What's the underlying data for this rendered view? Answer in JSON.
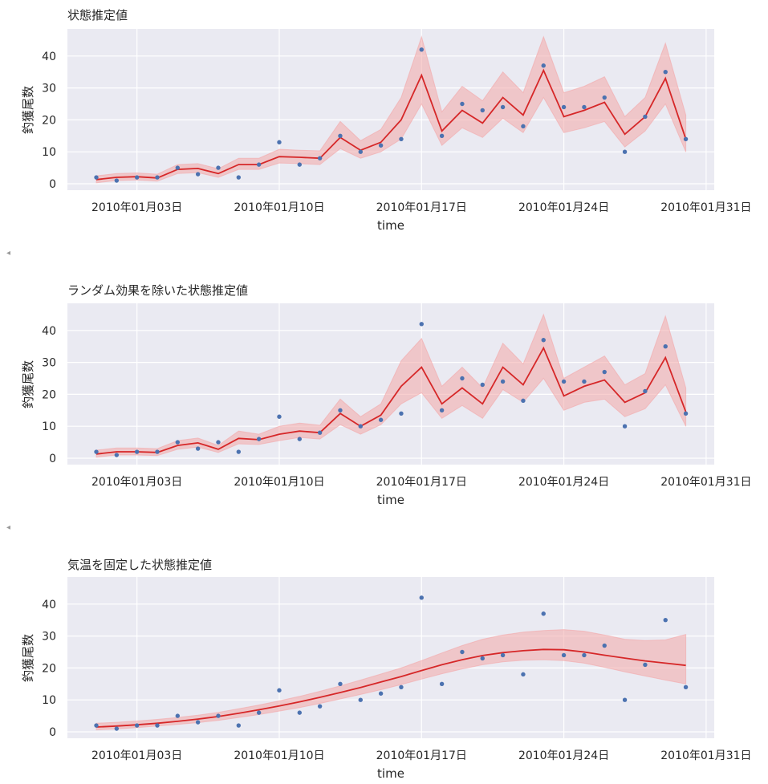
{
  "chart_data": [
    {
      "type": "line",
      "title": "状態推定値",
      "xlabel": "time",
      "ylabel": "釣獲尾数",
      "xlim": [
        "2010-01-01",
        "2010-01-31"
      ],
      "ylim": [
        0,
        45
      ],
      "xticks": [
        "2010-01-03",
        "2010-01-10",
        "2010-01-17",
        "2010-01-24",
        "2010-01-31"
      ],
      "xtick_labels": [
        "2010年01月03日",
        "2010年01月10日",
        "2010年01月17日",
        "2010年01月24日",
        "2010年01月31日"
      ],
      "yticks": [
        0,
        10,
        20,
        30,
        40
      ],
      "grid": true,
      "x": [
        "2010-01-01",
        "2010-01-02",
        "2010-01-03",
        "2010-01-04",
        "2010-01-05",
        "2010-01-06",
        "2010-01-07",
        "2010-01-08",
        "2010-01-09",
        "2010-01-10",
        "2010-01-11",
        "2010-01-12",
        "2010-01-13",
        "2010-01-14",
        "2010-01-15",
        "2010-01-16",
        "2010-01-17",
        "2010-01-18",
        "2010-01-19",
        "2010-01-20",
        "2010-01-21",
        "2010-01-22",
        "2010-01-23",
        "2010-01-24",
        "2010-01-25",
        "2010-01-26",
        "2010-01-27",
        "2010-01-28",
        "2010-01-29",
        "2010-01-30"
      ],
      "observed": [
        2,
        1,
        2,
        2,
        5,
        3,
        5,
        2,
        6,
        13,
        6,
        8,
        15,
        10,
        12,
        14,
        42,
        15,
        25,
        23,
        24,
        18,
        37,
        24,
        24,
        27,
        10,
        21,
        35,
        14
      ],
      "estimate": [
        1.3,
        2.0,
        2.2,
        1.8,
        4.5,
        4.8,
        3.2,
        6.0,
        6.0,
        8.5,
        8.3,
        8.0,
        14.5,
        10.5,
        13.0,
        20.0,
        34.0,
        16.5,
        23.0,
        19.0,
        27.0,
        21.5,
        35.5,
        21.0,
        23.0,
        25.5,
        15.5,
        21.0,
        33.0,
        14.0
      ],
      "lower": [
        0.3,
        1.0,
        1.2,
        0.8,
        3.2,
        3.5,
        2.0,
        4.5,
        4.5,
        6.5,
        6.3,
        6.0,
        11.0,
        8.0,
        10.0,
        14.0,
        25.0,
        12.0,
        17.5,
        14.5,
        20.5,
        16.0,
        27.0,
        16.0,
        17.5,
        19.5,
        11.5,
        16.5,
        25.0,
        10.0
      ],
      "upper": [
        2.5,
        3.2,
        3.4,
        3.0,
        6.0,
        6.3,
        4.7,
        8.0,
        8.0,
        10.8,
        10.5,
        10.3,
        19.5,
        13.5,
        17.0,
        27.0,
        46.0,
        22.5,
        30.5,
        26.0,
        35.0,
        28.5,
        46.0,
        28.5,
        30.5,
        33.5,
        21.0,
        27.0,
        44.0,
        21.5
      ]
    },
    {
      "type": "line",
      "title": "ランダム効果を除いた状態推定値",
      "xlabel": "time",
      "ylabel": "釣獲尾数",
      "xlim": [
        "2010-01-01",
        "2010-01-31"
      ],
      "ylim": [
        0,
        45
      ],
      "xticks": [
        "2010-01-03",
        "2010-01-10",
        "2010-01-17",
        "2010-01-24",
        "2010-01-31"
      ],
      "xtick_labels": [
        "2010年01月03日",
        "2010年01月10日",
        "2010年01月17日",
        "2010年01月24日",
        "2010年01月31日"
      ],
      "yticks": [
        0,
        10,
        20,
        30,
        40
      ],
      "grid": true,
      "x": [
        "2010-01-01",
        "2010-01-02",
        "2010-01-03",
        "2010-01-04",
        "2010-01-05",
        "2010-01-06",
        "2010-01-07",
        "2010-01-08",
        "2010-01-09",
        "2010-01-10",
        "2010-01-11",
        "2010-01-12",
        "2010-01-13",
        "2010-01-14",
        "2010-01-15",
        "2010-01-16",
        "2010-01-17",
        "2010-01-18",
        "2010-01-19",
        "2010-01-20",
        "2010-01-21",
        "2010-01-22",
        "2010-01-23",
        "2010-01-24",
        "2010-01-25",
        "2010-01-26",
        "2010-01-27",
        "2010-01-28",
        "2010-01-29",
        "2010-01-30"
      ],
      "observed": [
        2,
        1,
        2,
        2,
        5,
        3,
        5,
        2,
        6,
        13,
        6,
        8,
        15,
        10,
        12,
        14,
        42,
        15,
        25,
        23,
        24,
        18,
        37,
        24,
        24,
        27,
        10,
        21,
        35,
        14
      ],
      "estimate": [
        1.3,
        2.0,
        2.0,
        1.8,
        4.0,
        4.8,
        2.8,
        6.2,
        5.8,
        7.5,
        8.5,
        8.0,
        14.0,
        10.0,
        13.5,
        22.5,
        28.5,
        17.0,
        22.0,
        17.0,
        28.5,
        23.0,
        34.5,
        19.5,
        22.5,
        24.5,
        17.5,
        20.5,
        31.5,
        14.5
      ],
      "lower": [
        0.3,
        1.0,
        1.0,
        0.8,
        2.8,
        3.5,
        1.8,
        4.5,
        4.3,
        5.5,
        6.5,
        6.0,
        10.5,
        7.5,
        10.5,
        17.0,
        20.5,
        12.5,
        16.5,
        12.5,
        21.5,
        17.5,
        25.0,
        15.0,
        17.5,
        18.5,
        13.0,
        15.5,
        23.0,
        10.0
      ],
      "upper": [
        2.5,
        3.2,
        3.2,
        3.0,
        5.5,
        6.3,
        4.0,
        8.5,
        7.5,
        10.0,
        11.0,
        10.3,
        18.5,
        13.0,
        17.0,
        30.5,
        37.5,
        22.5,
        28.5,
        22.0,
        36.0,
        29.5,
        45.0,
        25.0,
        28.5,
        32.0,
        23.0,
        26.5,
        44.5,
        22.0
      ]
    },
    {
      "type": "line",
      "title": "気温を固定した状態推定値",
      "xlabel": "time",
      "ylabel": "釣獲尾数",
      "xlim": [
        "2010-01-01",
        "2010-01-31"
      ],
      "ylim": [
        0,
        45
      ],
      "xticks": [
        "2010-01-03",
        "2010-01-10",
        "2010-01-17",
        "2010-01-24",
        "2010-01-31"
      ],
      "xtick_labels": [
        "2010年01月03日",
        "2010年01月10日",
        "2010年01月17日",
        "2010年01月24日",
        "2010年01月31日"
      ],
      "yticks": [
        0,
        10,
        20,
        30,
        40
      ],
      "grid": true,
      "x": [
        "2010-01-01",
        "2010-01-02",
        "2010-01-03",
        "2010-01-04",
        "2010-01-05",
        "2010-01-06",
        "2010-01-07",
        "2010-01-08",
        "2010-01-09",
        "2010-01-10",
        "2010-01-11",
        "2010-01-12",
        "2010-01-13",
        "2010-01-14",
        "2010-01-15",
        "2010-01-16",
        "2010-01-17",
        "2010-01-18",
        "2010-01-19",
        "2010-01-20",
        "2010-01-21",
        "2010-01-22",
        "2010-01-23",
        "2010-01-24",
        "2010-01-25",
        "2010-01-26",
        "2010-01-27",
        "2010-01-28",
        "2010-01-29",
        "2010-01-30"
      ],
      "observed": [
        2,
        1,
        2,
        2,
        5,
        3,
        5,
        2,
        6,
        13,
        6,
        8,
        15,
        10,
        12,
        14,
        42,
        15,
        25,
        23,
        24,
        18,
        37,
        24,
        24,
        27,
        10,
        21,
        35,
        14
      ],
      "estimate": [
        1.5,
        1.8,
        2.2,
        2.7,
        3.3,
        4.0,
        4.8,
        5.8,
        6.9,
        8.1,
        9.4,
        10.8,
        12.3,
        13.9,
        15.6,
        17.3,
        19.2,
        21.0,
        22.6,
        23.9,
        24.8,
        25.4,
        25.8,
        25.7,
        25.0,
        24.0,
        23.1,
        22.2,
        21.5,
        20.8
      ],
      "lower": [
        0.6,
        0.9,
        1.3,
        1.8,
        2.3,
        2.9,
        3.6,
        4.5,
        5.4,
        6.5,
        7.6,
        8.9,
        10.3,
        11.7,
        13.2,
        14.8,
        16.5,
        18.2,
        19.7,
        21.0,
        21.9,
        22.4,
        22.6,
        22.3,
        21.5,
        20.2,
        18.8,
        17.5,
        16.2,
        15.0
      ],
      "upper": [
        2.7,
        3.0,
        3.4,
        3.9,
        4.5,
        5.2,
        6.1,
        7.2,
        8.4,
        9.7,
        11.1,
        12.7,
        14.4,
        16.2,
        18.1,
        20.0,
        22.3,
        24.7,
        27.0,
        29.0,
        30.3,
        31.2,
        31.7,
        32.0,
        31.5,
        30.3,
        29.0,
        28.6,
        28.8,
        30.5
      ]
    }
  ],
  "colors": {
    "plot_bg": "#eaeaf2",
    "grid": "#ffffff",
    "line": "#d62728",
    "band": "#f3a7a8",
    "dots": "#4c72b0"
  },
  "nav_arrows": [
    "◂",
    "◂"
  ]
}
